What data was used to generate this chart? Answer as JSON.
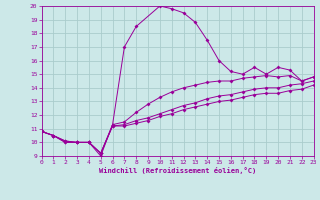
{
  "xlabel": "Windchill (Refroidissement éolien,°C)",
  "bg_color": "#cce8e8",
  "grid_color": "#aacccc",
  "line_color": "#990099",
  "xmin": 0,
  "xmax": 23,
  "ymin": 9,
  "ymax": 20,
  "xticks": [
    0,
    1,
    2,
    3,
    4,
    5,
    6,
    7,
    8,
    9,
    10,
    11,
    12,
    13,
    14,
    15,
    16,
    17,
    18,
    19,
    20,
    21,
    22,
    23
  ],
  "yticks": [
    9,
    10,
    11,
    12,
    13,
    14,
    15,
    16,
    17,
    18,
    19,
    20
  ],
  "line1_x": [
    0,
    1,
    2,
    3,
    4,
    5,
    6,
    7,
    8,
    10,
    11,
    12,
    13,
    14,
    15,
    16,
    17,
    18,
    19,
    20,
    21,
    22,
    23
  ],
  "line1_y": [
    10.8,
    10.5,
    10.0,
    10.0,
    10.0,
    9.0,
    11.3,
    17.0,
    18.5,
    20.0,
    19.8,
    19.5,
    18.8,
    17.5,
    16.0,
    15.2,
    15.0,
    15.5,
    15.0,
    15.5,
    15.3,
    14.5,
    14.8
  ],
  "line2_x": [
    0,
    1,
    2,
    3,
    4,
    5,
    6,
    7,
    8,
    9,
    10,
    11,
    12,
    13,
    14,
    15,
    16,
    17,
    18,
    19,
    20,
    21,
    22,
    23
  ],
  "line2_y": [
    10.8,
    10.5,
    10.1,
    10.0,
    10.0,
    9.2,
    11.3,
    11.5,
    12.2,
    12.8,
    13.3,
    13.7,
    14.0,
    14.2,
    14.4,
    14.5,
    14.5,
    14.7,
    14.8,
    14.9,
    14.8,
    14.9,
    14.5,
    14.8
  ],
  "line3_x": [
    0,
    1,
    2,
    3,
    4,
    5,
    6,
    7,
    8,
    9,
    10,
    11,
    12,
    13,
    14,
    15,
    16,
    17,
    18,
    19,
    20,
    21,
    22,
    23
  ],
  "line3_y": [
    10.8,
    10.5,
    10.1,
    10.0,
    10.0,
    9.2,
    11.2,
    11.3,
    11.6,
    11.8,
    12.1,
    12.4,
    12.7,
    12.9,
    13.2,
    13.4,
    13.5,
    13.7,
    13.9,
    14.0,
    14.0,
    14.2,
    14.3,
    14.5
  ],
  "line4_x": [
    0,
    1,
    2,
    3,
    4,
    5,
    6,
    7,
    8,
    9,
    10,
    11,
    12,
    13,
    14,
    15,
    16,
    17,
    18,
    19,
    20,
    21,
    22,
    23
  ],
  "line4_y": [
    10.8,
    10.5,
    10.0,
    10.0,
    10.0,
    9.2,
    11.2,
    11.2,
    11.4,
    11.6,
    11.9,
    12.1,
    12.4,
    12.6,
    12.8,
    13.0,
    13.1,
    13.3,
    13.5,
    13.6,
    13.6,
    13.8,
    13.9,
    14.2
  ]
}
